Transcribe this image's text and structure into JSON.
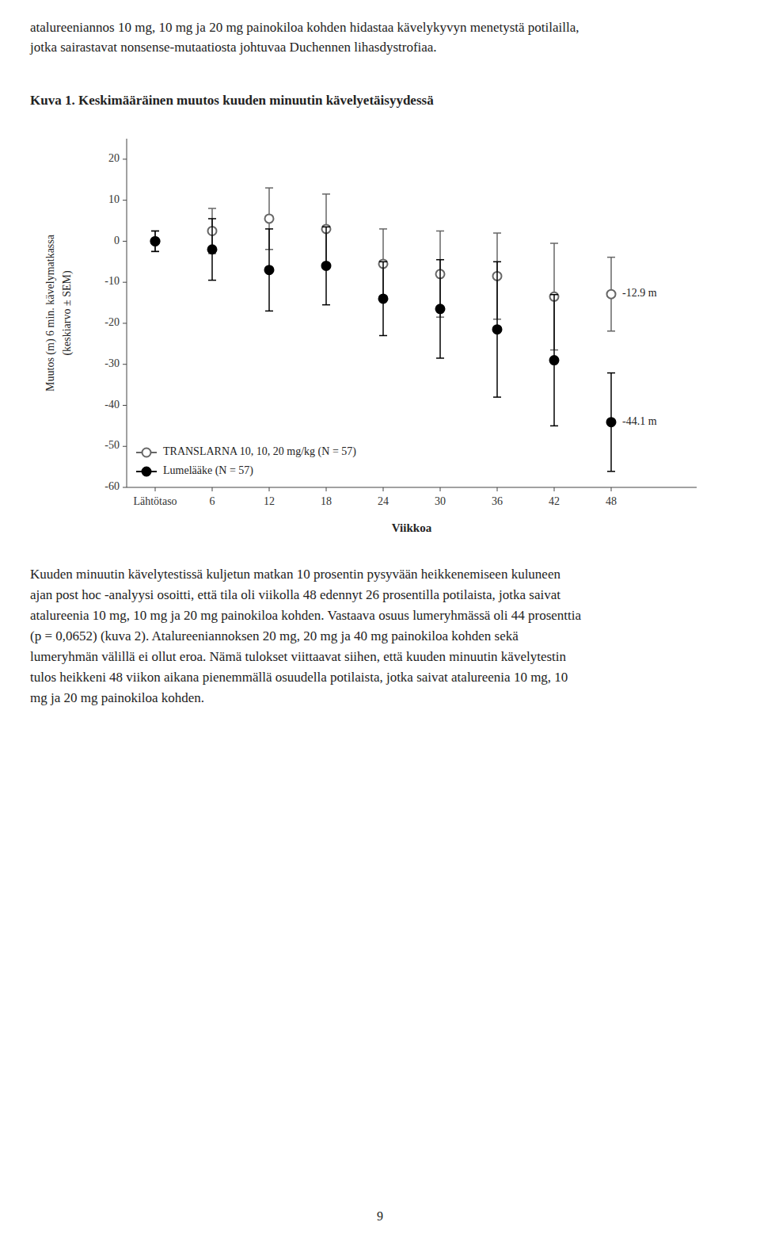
{
  "header": "atalureeniannos 10 mg, 10 mg ja 20 mg painokiloa kohden hidastaa kävelykyvyn menetystä potilailla,\njotka sairastavat nonsense-mutaatiosta johtuvaa Duchennen lihasdystrofiaa.",
  "footer": "Kuuden minuutin kävelytestissä kuljetun matkan 10 prosentin pysyvään heikkenemiseen kuluneen\najan post hoc -analyysi osoitti, että tila oli viikolla 48 edennyt 26 prosentilla potilaista, jotka saivat\natalureenia 10 mg, 10 mg ja 20 mg painokiloa kohden. Vastaava osuus lumeryhmässä oli 44 prosenttia\n(p = 0,0652) (kuva 2). Atalureeniannoksen 20 mg, 20 mg ja 40 mg painokiloa kohden sekä\nlumeryhmän välillä ei ollut eroa. Nämä tulokset viittaavat siihen, että kuuden minuutin kävelytestin\ntulos heikkeni 48 viikon aikana pienemmällä osuudella potilaista, jotka saivat atalureenia 10 mg, 10\nmg ja 20 mg painokiloa kohden.",
  "page_number": "9",
  "chart_data": {
    "type": "line",
    "title": "Kuva 1. Keskimääräinen muutos kuuden minuutin kävelyetäisyydessä",
    "x_label": "Viikkoa",
    "y_label": "Muutos (m) 6 min. kävelymatkassa\n(keskiarvo ± SEM)",
    "categories": [
      "Lähtötaso",
      "6",
      "12",
      "18",
      "24",
      "30",
      "36",
      "42",
      "48"
    ],
    "ylim": [
      -60,
      25
    ],
    "yticks": [
      20,
      10,
      0,
      -10,
      -20,
      -30,
      -40,
      -50,
      -60
    ],
    "grid": false,
    "legend": "lower left",
    "series": [
      {
        "name": "TRANSLARNA 10, 10, 20 mg/kg (N = 57)",
        "color": "#666666",
        "marker": "open-circle",
        "line_style": "none",
        "values": [
          0,
          2.5,
          5.5,
          3.0,
          -5.5,
          -8.0,
          -8.5,
          -13.5,
          -12.9
        ],
        "errors": [
          2.5,
          5.5,
          7.5,
          8.5,
          8.5,
          10.5,
          10.5,
          13.0,
          9.0
        ]
      },
      {
        "name": "Lumelääke (N = 57)",
        "color": "#000000",
        "marker": "circle",
        "line_style": "none",
        "values": [
          0,
          -2.0,
          -7.0,
          -6.0,
          -14.0,
          -16.5,
          -21.5,
          -29.0,
          -44.1
        ],
        "errors": [
          2.5,
          7.5,
          10.0,
          9.5,
          9.0,
          12.0,
          16.5,
          16.0,
          12.0
        ]
      }
    ],
    "annotations": [
      {
        "text": "-12.9 m",
        "y": -12.9
      },
      {
        "text": "-44.1 m",
        "y": -44.1
      }
    ]
  }
}
